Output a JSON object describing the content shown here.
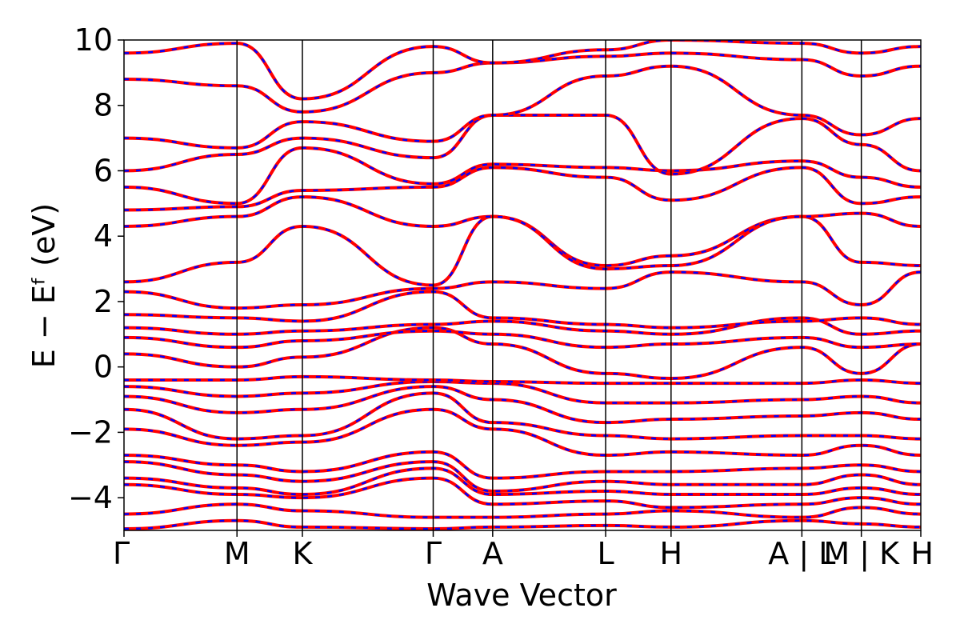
{
  "chart_data": {
    "type": "line",
    "title": "",
    "xlabel": "Wave Vector",
    "ylabel": "E − Eᶠ (eV)",
    "ylim": [
      -5,
      10
    ],
    "yticks": [
      -4,
      -2,
      0,
      2,
      4,
      6,
      8,
      10
    ],
    "ytick_labels": [
      "−4",
      "−2",
      "0",
      "2",
      "4",
      "6",
      "8",
      "10"
    ],
    "kpoints": [
      {
        "label": "Γ",
        "x": 0.0
      },
      {
        "label": "M",
        "x": 0.95
      },
      {
        "label": "K",
        "x": 1.5
      },
      {
        "label": "Γ",
        "x": 2.6
      },
      {
        "label": "A",
        "x": 3.1
      },
      {
        "label": "L",
        "x": 4.05
      },
      {
        "label": "H",
        "x": 4.6
      },
      {
        "label": "A | L",
        "x": 5.7
      },
      {
        "label": "M | K",
        "x": 6.2
      },
      {
        "label": "H",
        "x": 6.7
      }
    ],
    "colors": {
      "solid": "#ff0000",
      "dashed": "#0000ff"
    },
    "legend": "none",
    "grid": false,
    "series": [
      {
        "values": [
          [
            0,
            -4.95
          ],
          [
            0.95,
            -4.7
          ],
          [
            1.5,
            -4.9
          ],
          [
            2.6,
            -4.95
          ],
          [
            3.1,
            -4.9
          ],
          [
            4.05,
            -4.85
          ],
          [
            4.6,
            -4.9
          ],
          [
            5.7,
            -4.7
          ],
          [
            6.2,
            -4.8
          ],
          [
            6.7,
            -4.9
          ]
        ]
      },
      {
        "values": [
          [
            0,
            -4.5
          ],
          [
            0.95,
            -4.2
          ],
          [
            1.5,
            -4.4
          ],
          [
            2.6,
            -4.6
          ],
          [
            3.1,
            -4.6
          ],
          [
            4.05,
            -4.5
          ],
          [
            4.6,
            -4.4
          ],
          [
            5.7,
            -4.6
          ],
          [
            6.2,
            -4.3
          ],
          [
            6.7,
            -4.5
          ]
        ]
      },
      {
        "values": [
          [
            0,
            -3.6
          ],
          [
            0.95,
            -3.9
          ],
          [
            1.5,
            -4.0
          ],
          [
            2.6,
            -3.4
          ],
          [
            3.1,
            -4.2
          ],
          [
            4.05,
            -4.1
          ],
          [
            4.6,
            -4.3
          ],
          [
            5.7,
            -4.2
          ],
          [
            6.2,
            -4.0
          ],
          [
            6.7,
            -4.2
          ]
        ]
      },
      {
        "values": [
          [
            0,
            -3.4
          ],
          [
            0.95,
            -3.7
          ],
          [
            1.5,
            -3.9
          ],
          [
            2.6,
            -3.1
          ],
          [
            3.1,
            -3.9
          ],
          [
            4.05,
            -3.8
          ],
          [
            4.6,
            -3.9
          ],
          [
            5.7,
            -3.9
          ],
          [
            6.2,
            -3.7
          ],
          [
            6.7,
            -3.9
          ]
        ]
      },
      {
        "values": [
          [
            0,
            -2.9
          ],
          [
            0.95,
            -3.3
          ],
          [
            1.5,
            -3.5
          ],
          [
            2.6,
            -2.9
          ],
          [
            3.1,
            -3.8
          ],
          [
            4.05,
            -3.5
          ],
          [
            4.6,
            -3.6
          ],
          [
            5.7,
            -3.6
          ],
          [
            6.2,
            -3.3
          ],
          [
            6.7,
            -3.6
          ]
        ]
      },
      {
        "values": [
          [
            0,
            -2.7
          ],
          [
            0.95,
            -3.0
          ],
          [
            1.5,
            -3.2
          ],
          [
            2.6,
            -2.6
          ],
          [
            3.1,
            -3.4
          ],
          [
            4.05,
            -3.2
          ],
          [
            4.6,
            -3.2
          ],
          [
            5.7,
            -3.1
          ],
          [
            6.2,
            -3.0
          ],
          [
            6.7,
            -3.2
          ]
        ]
      },
      {
        "values": [
          [
            0,
            -1.9
          ],
          [
            0.95,
            -2.4
          ],
          [
            1.5,
            -2.3
          ],
          [
            2.6,
            -1.3
          ],
          [
            3.1,
            -1.9
          ],
          [
            4.05,
            -2.7
          ],
          [
            4.6,
            -2.6
          ],
          [
            5.7,
            -2.7
          ],
          [
            6.2,
            -2.4
          ],
          [
            6.7,
            -2.7
          ]
        ]
      },
      {
        "values": [
          [
            0,
            -1.3
          ],
          [
            0.95,
            -2.2
          ],
          [
            1.5,
            -2.1
          ],
          [
            2.6,
            -0.8
          ],
          [
            3.1,
            -1.7
          ],
          [
            4.05,
            -2.1
          ],
          [
            4.6,
            -2.2
          ],
          [
            5.7,
            -2.1
          ],
          [
            6.2,
            -2.1
          ],
          [
            6.7,
            -2.2
          ]
        ]
      },
      {
        "values": [
          [
            0,
            -0.9
          ],
          [
            0.95,
            -1.4
          ],
          [
            1.5,
            -1.3
          ],
          [
            2.6,
            -0.6
          ],
          [
            3.1,
            -1.0
          ],
          [
            4.05,
            -1.7
          ],
          [
            4.6,
            -1.6
          ],
          [
            5.7,
            -1.5
          ],
          [
            6.2,
            -1.4
          ],
          [
            6.7,
            -1.6
          ]
        ]
      },
      {
        "values": [
          [
            0,
            -0.6
          ],
          [
            0.95,
            -0.9
          ],
          [
            1.5,
            -0.8
          ],
          [
            2.6,
            -0.45
          ],
          [
            3.1,
            -0.5
          ],
          [
            4.05,
            -1.1
          ],
          [
            4.6,
            -1.1
          ],
          [
            5.7,
            -1.0
          ],
          [
            6.2,
            -0.9
          ],
          [
            6.7,
            -1.1
          ]
        ]
      },
      {
        "values": [
          [
            0,
            -0.4
          ],
          [
            0.95,
            -0.4
          ],
          [
            1.5,
            -0.3
          ],
          [
            2.6,
            -0.4
          ],
          [
            3.1,
            -0.45
          ],
          [
            4.05,
            -0.5
          ],
          [
            4.6,
            -0.5
          ],
          [
            5.7,
            -0.5
          ],
          [
            6.2,
            -0.4
          ],
          [
            6.7,
            -0.5
          ]
        ]
      },
      {
        "values": [
          [
            0,
            0.4
          ],
          [
            0.95,
            0.0
          ],
          [
            1.5,
            0.3
          ],
          [
            2.6,
            1.2
          ],
          [
            3.1,
            0.7
          ],
          [
            4.05,
            -0.2
          ],
          [
            4.6,
            -0.35
          ],
          [
            5.7,
            0.6
          ],
          [
            6.2,
            -0.2
          ],
          [
            6.7,
            0.7
          ]
        ]
      },
      {
        "values": [
          [
            0,
            0.9
          ],
          [
            0.95,
            0.6
          ],
          [
            1.5,
            0.8
          ],
          [
            2.6,
            1.1
          ],
          [
            3.1,
            1.0
          ],
          [
            4.05,
            0.6
          ],
          [
            4.6,
            0.7
          ],
          [
            5.7,
            0.9
          ],
          [
            6.2,
            0.6
          ],
          [
            6.7,
            0.7
          ]
        ]
      },
      {
        "values": [
          [
            0,
            1.2
          ],
          [
            0.95,
            1.0
          ],
          [
            1.5,
            1.1
          ],
          [
            2.6,
            1.3
          ],
          [
            3.1,
            1.4
          ],
          [
            4.05,
            1.1
          ],
          [
            4.6,
            1.0
          ],
          [
            5.7,
            1.5
          ],
          [
            6.2,
            1.0
          ],
          [
            6.7,
            1.1
          ]
        ]
      },
      {
        "values": [
          [
            0,
            1.6
          ],
          [
            0.95,
            1.5
          ],
          [
            1.5,
            1.4
          ],
          [
            2.6,
            2.3
          ],
          [
            3.1,
            1.5
          ],
          [
            4.05,
            1.3
          ],
          [
            4.6,
            1.2
          ],
          [
            5.7,
            1.4
          ],
          [
            6.2,
            1.5
          ],
          [
            6.7,
            1.3
          ]
        ]
      },
      {
        "values": [
          [
            0,
            2.3
          ],
          [
            0.95,
            1.8
          ],
          [
            1.5,
            1.9
          ],
          [
            2.6,
            2.4
          ],
          [
            3.1,
            2.6
          ],
          [
            4.05,
            2.4
          ],
          [
            4.6,
            2.9
          ],
          [
            5.7,
            2.6
          ],
          [
            6.2,
            1.9
          ],
          [
            6.7,
            2.9
          ]
        ]
      },
      {
        "values": [
          [
            0,
            2.6
          ],
          [
            0.95,
            3.2
          ],
          [
            1.5,
            4.3
          ],
          [
            2.6,
            2.5
          ],
          [
            3.1,
            4.6
          ],
          [
            4.05,
            3.1
          ],
          [
            4.6,
            3.4
          ],
          [
            5.7,
            4.6
          ],
          [
            6.2,
            3.2
          ],
          [
            6.7,
            3.1
          ]
        ]
      },
      {
        "values": [
          [
            0,
            4.3
          ],
          [
            0.95,
            4.6
          ],
          [
            1.5,
            5.2
          ],
          [
            2.6,
            4.3
          ],
          [
            3.1,
            4.6
          ],
          [
            4.05,
            3.0
          ],
          [
            4.6,
            3.1
          ],
          [
            5.7,
            4.6
          ],
          [
            6.2,
            4.7
          ],
          [
            6.7,
            4.3
          ]
        ]
      },
      {
        "values": [
          [
            0,
            4.8
          ],
          [
            0.95,
            4.9
          ],
          [
            1.5,
            5.4
          ],
          [
            2.6,
            5.5
          ],
          [
            3.1,
            6.1
          ],
          [
            4.05,
            5.8
          ],
          [
            4.6,
            5.1
          ],
          [
            5.7,
            6.1
          ],
          [
            6.2,
            5.0
          ],
          [
            6.7,
            5.2
          ]
        ]
      },
      {
        "values": [
          [
            0,
            5.5
          ],
          [
            0.95,
            5.0
          ],
          [
            1.5,
            6.7
          ],
          [
            2.6,
            5.6
          ],
          [
            3.1,
            6.2
          ],
          [
            4.05,
            6.1
          ],
          [
            4.6,
            6.0
          ],
          [
            5.7,
            6.3
          ],
          [
            6.2,
            5.8
          ],
          [
            6.7,
            5.5
          ]
        ]
      },
      {
        "values": [
          [
            0,
            6.0
          ],
          [
            0.95,
            6.5
          ],
          [
            1.5,
            7.0
          ],
          [
            2.6,
            6.4
          ],
          [
            3.1,
            7.7
          ],
          [
            4.05,
            7.7
          ],
          [
            4.6,
            5.9
          ],
          [
            5.7,
            7.6
          ],
          [
            6.2,
            6.8
          ],
          [
            6.7,
            6.0
          ]
        ]
      },
      {
        "values": [
          [
            0,
            7.0
          ],
          [
            0.95,
            6.7
          ],
          [
            1.5,
            7.5
          ],
          [
            2.6,
            6.9
          ],
          [
            3.1,
            7.7
          ],
          [
            4.05,
            8.9
          ],
          [
            4.6,
            9.2
          ],
          [
            5.7,
            7.7
          ],
          [
            6.2,
            7.1
          ],
          [
            6.7,
            7.6
          ]
        ]
      },
      {
        "values": [
          [
            0,
            8.8
          ],
          [
            0.95,
            8.6
          ],
          [
            1.5,
            7.8
          ],
          [
            2.6,
            9.0
          ],
          [
            3.1,
            9.3
          ],
          [
            4.05,
            9.5
          ],
          [
            4.6,
            9.6
          ],
          [
            5.7,
            9.4
          ],
          [
            6.2,
            8.9
          ],
          [
            6.7,
            9.2
          ]
        ]
      },
      {
        "values": [
          [
            0,
            9.6
          ],
          [
            0.95,
            9.9
          ],
          [
            1.5,
            8.2
          ],
          [
            2.6,
            9.8
          ],
          [
            3.1,
            9.3
          ],
          [
            4.05,
            9.7
          ],
          [
            4.6,
            10.0
          ],
          [
            5.7,
            9.9
          ],
          [
            6.2,
            9.6
          ],
          [
            6.7,
            9.8
          ]
        ]
      }
    ]
  }
}
